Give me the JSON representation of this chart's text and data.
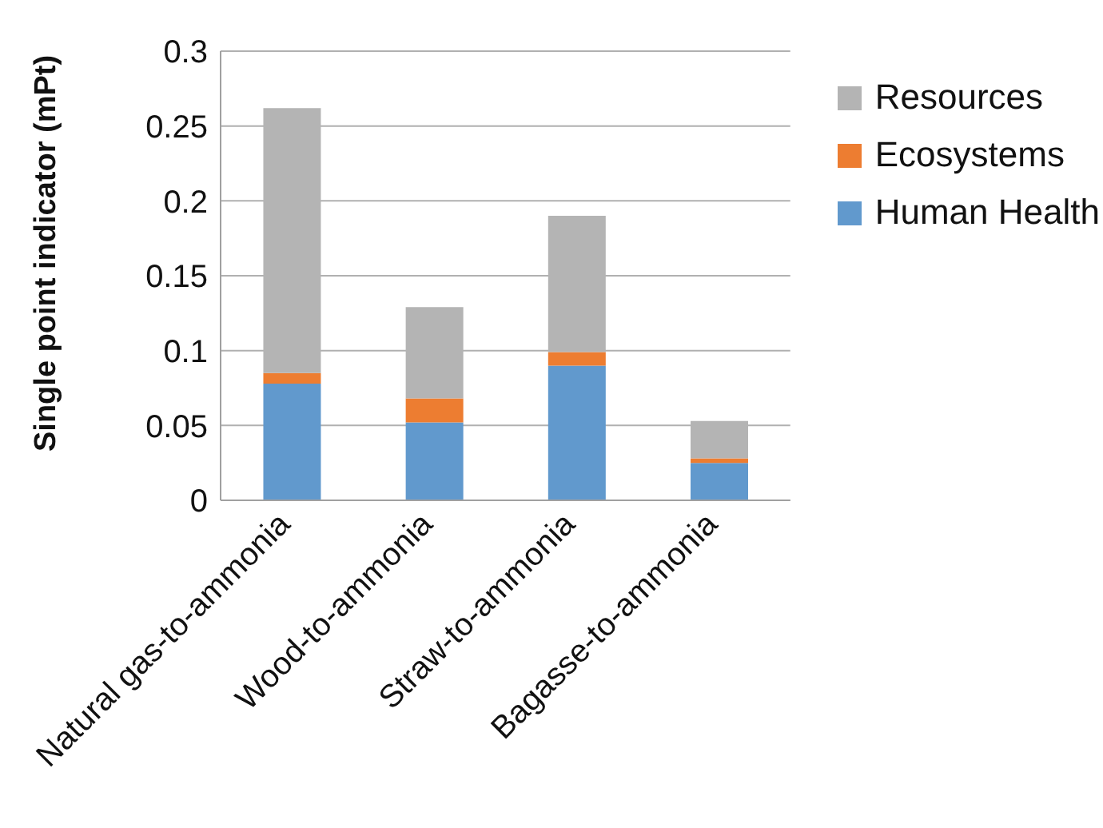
{
  "chart_data": {
    "type": "bar",
    "ylabel": "Single point indicator (mPt)",
    "categories": [
      "Natural gas-to-ammonia",
      "Wood-to-ammonia",
      "Straw-to-ammonia",
      "Bagasse-to-ammonia"
    ],
    "series": [
      {
        "name": "Human Health",
        "color": "#6199cd",
        "values": [
          0.078,
          0.052,
          0.09,
          0.025
        ]
      },
      {
        "name": "Ecosystems",
        "color": "#ed7d31",
        "values": [
          0.007,
          0.016,
          0.009,
          0.003
        ]
      },
      {
        "name": "Resources",
        "color": "#b4b4b4",
        "values": [
          0.177,
          0.061,
          0.091,
          0.025
        ]
      }
    ],
    "stacked": true,
    "ylim": [
      0,
      0.3
    ],
    "yticks": [
      0,
      0.05,
      0.1,
      0.15,
      0.2,
      0.25,
      0.3
    ],
    "grid": "y",
    "legend": "top right"
  }
}
